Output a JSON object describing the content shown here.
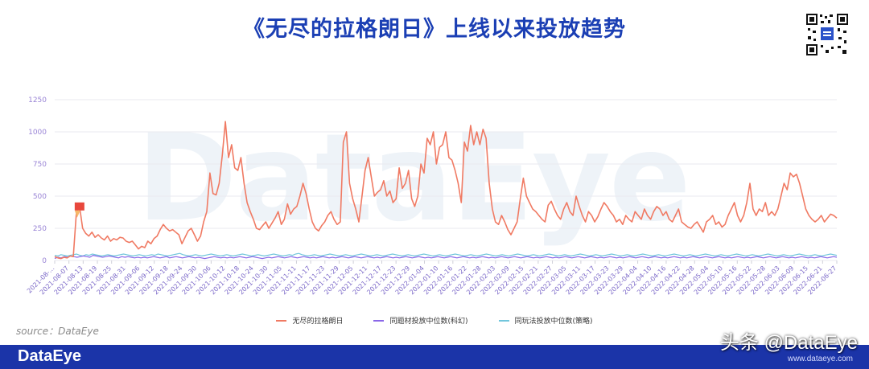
{
  "title": "《无尽的拉格朗日》上线以来投放趋势",
  "watermark_text": "DataEye",
  "source_label": "source：DataEye",
  "footer_logo": "DataEye",
  "credit": "头条 @DataEye",
  "credit_url": "www.dataeye.com",
  "colors": {
    "title": "#1b3fb4",
    "footer": "#1b34a8",
    "series1": "#f07a63",
    "series2": "#8a67e8",
    "series3": "#72c6dc",
    "marker": "#e8473c"
  },
  "chart_data": {
    "type": "line",
    "ylim": [
      0,
      1250
    ],
    "yticks": [
      "0",
      "250",
      "500",
      "750",
      "1000",
      "1250"
    ],
    "xticks": [
      "2021-08-...",
      "2021-08-07",
      "2021-08-13",
      "2021-08-19",
      "2021-08-25",
      "2021-08-31",
      "2021-09-06",
      "2021-09-12",
      "2021-09-18",
      "2021-09-24",
      "2021-09-30",
      "2021-10-06",
      "2021-10-12",
      "2021-10-18",
      "2021-10-24",
      "2021-10-30",
      "2021-11-05",
      "2021-11-11",
      "2021-11-17",
      "2021-11-23",
      "2021-11-29",
      "2021-12-05",
      "2021-12-11",
      "2021-12-17",
      "2021-12-23",
      "2021-12-29",
      "2022-01-04",
      "2022-01-10",
      "2022-01-16",
      "2022-01-22",
      "2022-01-28",
      "2022-02-03",
      "2022-02-09",
      "2022-02-15",
      "2022-02-21",
      "2022-02-27",
      "2022-03-05",
      "2022-03-11",
      "2022-03-17",
      "2022-03-23",
      "2022-03-29",
      "2022-04-04",
      "2022-04-10",
      "2022-04-16",
      "2022-04-22",
      "2022-04-28",
      "2022-05-04",
      "2022-05-10",
      "2022-05-16",
      "2022-05-22",
      "2022-05-28",
      "2022-06-03",
      "2022-06-09",
      "2022-06-15",
      "2022-06-21",
      "2022-06-27"
    ],
    "grid": true,
    "legend": "bottom",
    "series": [
      {
        "name": "无尽的拉格朗日",
        "values": [
          30,
          20,
          15,
          25,
          20,
          35,
          30,
          380,
          420,
          250,
          210,
          190,
          220,
          180,
          200,
          175,
          160,
          190,
          150,
          170,
          160,
          180,
          175,
          150,
          140,
          150,
          120,
          90,
          110,
          100,
          150,
          130,
          170,
          190,
          240,
          280,
          250,
          230,
          240,
          220,
          200,
          130,
          180,
          230,
          250,
          200,
          150,
          190,
          300,
          380,
          680,
          520,
          510,
          600,
          820,
          1080,
          800,
          900,
          720,
          700,
          800,
          600,
          450,
          380,
          320,
          250,
          240,
          270,
          300,
          250,
          290,
          330,
          380,
          280,
          320,
          440,
          360,
          400,
          420,
          500,
          600,
          520,
          400,
          300,
          250,
          230,
          270,
          300,
          350,
          380,
          320,
          280,
          300,
          920,
          1000,
          600,
          480,
          400,
          300,
          500,
          700,
          800,
          650,
          500,
          530,
          550,
          620,
          500,
          540,
          450,
          480,
          720,
          560,
          600,
          700,
          480,
          420,
          500,
          750,
          680,
          950,
          900,
          1000,
          750,
          880,
          900,
          1000,
          800,
          780,
          700,
          600,
          450,
          920,
          850,
          1050,
          900,
          1000,
          900,
          1020,
          950,
          600,
          400,
          300,
          280,
          350,
          300,
          240,
          200,
          250,
          300,
          480,
          640,
          500,
          450,
          400,
          380,
          350,
          320,
          300,
          430,
          460,
          400,
          350,
          320,
          400,
          450,
          380,
          350,
          500,
          420,
          350,
          300,
          380,
          350,
          300,
          340,
          400,
          450,
          420,
          380,
          350,
          300,
          320,
          280,
          350,
          320,
          300,
          380,
          350,
          320,
          400,
          350,
          320,
          380,
          420,
          400,
          350,
          380,
          320,
          300,
          350,
          400,
          300,
          280,
          260,
          250,
          280,
          300,
          260,
          220,
          300,
          320,
          350,
          280,
          300,
          260,
          280,
          350,
          400,
          450,
          350,
          300,
          350,
          450,
          600,
          400,
          350,
          400,
          380,
          450,
          350,
          380,
          350,
          400,
          500,
          600,
          550,
          680,
          650,
          670,
          600,
          500,
          400,
          350,
          320,
          300,
          320,
          350,
          300,
          330,
          360,
          350,
          330
        ]
      },
      {
        "name": "同题材投放中位数(科幻)",
        "values": [
          15,
          25,
          20,
          30,
          25,
          35,
          30,
          25,
          30,
          35,
          30,
          25,
          40,
          35,
          30,
          25,
          30,
          35,
          30,
          25,
          20,
          30,
          25,
          30,
          25,
          20,
          25,
          20,
          25,
          20,
          25,
          30,
          25,
          20,
          25,
          30,
          20,
          25,
          30,
          25,
          20,
          25,
          30,
          25,
          20,
          25,
          20,
          15,
          20,
          25,
          30,
          25,
          20,
          25,
          20,
          25,
          20,
          25,
          30,
          25,
          20,
          25,
          30,
          25,
          20,
          15,
          20,
          25,
          20,
          25,
          30,
          25,
          20,
          25,
          30,
          25,
          20,
          25,
          30,
          25,
          20,
          25,
          20,
          25,
          30,
          25,
          20,
          25,
          20,
          25,
          30,
          25,
          20,
          25,
          30,
          25,
          20,
          25,
          30,
          25,
          20,
          25,
          20,
          25,
          30,
          25,
          20,
          25,
          20,
          25,
          30,
          25,
          20,
          25,
          30,
          25,
          20,
          25,
          20,
          25,
          30,
          25,
          20,
          25,
          30,
          25,
          20,
          25,
          30,
          25,
          20,
          25,
          20,
          25,
          30,
          25,
          20,
          25,
          20,
          25,
          30,
          25,
          20,
          25,
          30,
          25,
          20,
          25,
          30,
          25,
          20,
          25,
          20,
          25,
          30,
          25,
          20,
          25,
          20,
          25,
          30,
          25,
          20,
          25,
          30,
          25,
          20,
          25,
          30,
          25,
          20,
          25,
          20,
          25,
          30,
          25,
          20,
          25,
          20,
          25,
          30,
          25,
          20,
          25,
          30,
          25,
          20,
          25,
          30,
          25,
          20,
          25,
          20,
          25,
          30,
          25,
          20,
          25,
          20,
          25,
          30,
          25,
          20,
          25,
          30,
          25,
          20,
          25,
          30,
          25,
          20,
          25,
          20,
          25,
          30,
          25,
          20,
          25,
          20,
          25,
          30,
          25,
          20,
          25,
          30,
          25,
          20,
          25,
          30,
          25,
          20,
          25,
          20,
          25,
          30,
          25,
          20,
          25,
          20,
          25,
          30,
          25,
          20,
          25,
          30,
          25
        ]
      },
      {
        "name": "同玩法投放中位数(策略)",
        "values": [
          40,
          35,
          45,
          40,
          35,
          40,
          45,
          50,
          40,
          35,
          45,
          40,
          50,
          45,
          40,
          35,
          40,
          45,
          40,
          35,
          40,
          45,
          50,
          45,
          40,
          35,
          40,
          45,
          40,
          35,
          40,
          45,
          40,
          50,
          45,
          40,
          35,
          40,
          45,
          50,
          55,
          45,
          40,
          35,
          40,
          45,
          40,
          35,
          40,
          45,
          50,
          45,
          40,
          35,
          40,
          45,
          40,
          35,
          40,
          45,
          50,
          45,
          40,
          35,
          40,
          45,
          40,
          35,
          40,
          45,
          50,
          45,
          40,
          35,
          40,
          45,
          40,
          50,
          55,
          45,
          40,
          35,
          40,
          45,
          40,
          35,
          40,
          45,
          50,
          45,
          40,
          35,
          40,
          45,
          40,
          35,
          40,
          45,
          50,
          45,
          40,
          35,
          40,
          45,
          40,
          35,
          40,
          45,
          50,
          45,
          40,
          35,
          40,
          45,
          40,
          35,
          40,
          45,
          50,
          45,
          40,
          35,
          40,
          45,
          40,
          35,
          40,
          45,
          50,
          45,
          40,
          35,
          40,
          45,
          40,
          35,
          40,
          45,
          50,
          45,
          40,
          35,
          40,
          45,
          40,
          35,
          40,
          45,
          50,
          45,
          40,
          35,
          40,
          45,
          40,
          35,
          40,
          45,
          50,
          45,
          40,
          35,
          40,
          45,
          40,
          35,
          40,
          45,
          50,
          45,
          40,
          35,
          40,
          45,
          40,
          35,
          40,
          45,
          50,
          45,
          40,
          35,
          40,
          45,
          40,
          35,
          40,
          45,
          50,
          45,
          40,
          35,
          40,
          45,
          40,
          35,
          40,
          45,
          50,
          45,
          40,
          35,
          40,
          45,
          40,
          35,
          40,
          45,
          50,
          45,
          40,
          35,
          40,
          45,
          40,
          35,
          40,
          45,
          50,
          45,
          40,
          35,
          40,
          45,
          40,
          35,
          40,
          45,
          50,
          45,
          40,
          35,
          40,
          45,
          40,
          35,
          40,
          45,
          50,
          45,
          40,
          35,
          40,
          45,
          40,
          35,
          40,
          45,
          50,
          45,
          40
        ]
      }
    ],
    "marker_index": 8
  }
}
